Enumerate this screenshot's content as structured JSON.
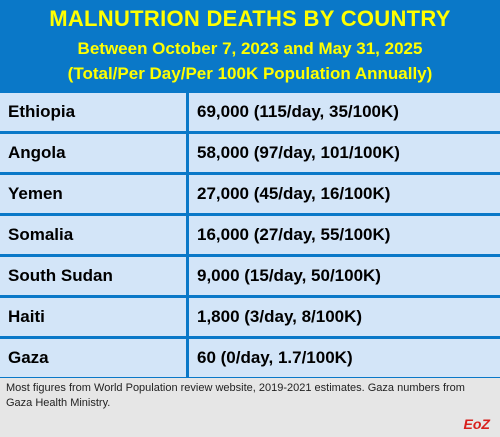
{
  "header": {
    "title": "MALNUTRION DEATHS BY COUNTRY",
    "subtitle_line1": "Between October 7, 2023 and May 31, 2025",
    "subtitle_line2": "(Total/Per Day/Per 100K Population Annually)"
  },
  "rows": [
    {
      "country": "Ethiopia",
      "value": "69,000 (115/day, 35/100K)"
    },
    {
      "country": "Angola",
      "value": "58,000 (97/day, 101/100K)"
    },
    {
      "country": "Yemen",
      "value": "27,000 (45/day, 16/100K)"
    },
    {
      "country": "Somalia",
      "value": "16,000 (27/day, 55/100K)"
    },
    {
      "country": "South Sudan",
      "value": "9,000 (15/day, 50/100K)"
    },
    {
      "country": "Haiti",
      "value": "1,800 (3/day, 8/100K)"
    },
    {
      "country": "Gaza",
      "value": "60 (0/day, 1.7/100K)"
    }
  ],
  "footer": {
    "note": "Most figures from World Population review website, 2019-2021 estimates. Gaza numbers from Gaza Health Ministry.",
    "credit": "EoZ"
  },
  "colors": {
    "header_bg": "#0a78c8",
    "title_text": "#ffff00",
    "cell_bg": "#d3e5f8",
    "border": "#0a78c8",
    "credit_text": "#d8201c"
  }
}
